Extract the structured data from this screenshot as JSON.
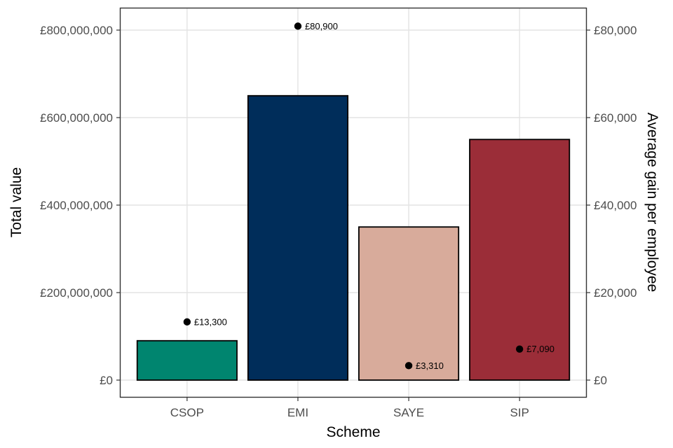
{
  "chart_data": {
    "type": "bar",
    "categories": [
      "CSOP",
      "EMI",
      "SAYE",
      "SIP"
    ],
    "xlabel": "Scheme",
    "ylabel": "Total value",
    "y2label": "Average gain per employee",
    "ylim": [
      0,
      850000000
    ],
    "y2lim": [
      0,
      85000
    ],
    "grid": true,
    "series": [
      {
        "axis": "left",
        "kind": "bar",
        "values": [
          90000000,
          650000000,
          350000000,
          550000000
        ],
        "colors": [
          "#00856f",
          "#002d5a",
          "#d8ab9b",
          "#9b2d38"
        ]
      },
      {
        "axis": "right",
        "kind": "point",
        "values": [
          13300,
          80900,
          3310,
          7090
        ],
        "labels": [
          "£13,300",
          "£80,900",
          "£3,310",
          "£7,090"
        ]
      }
    ],
    "y_ticks": [
      {
        "value": 0,
        "label": "£0"
      },
      {
        "value": 200000000,
        "label": "£200,000,000"
      },
      {
        "value": 400000000,
        "label": "£400,000,000"
      },
      {
        "value": 600000000,
        "label": "£600,000,000"
      },
      {
        "value": 800000000,
        "label": "£800,000,000"
      }
    ],
    "y2_ticks": [
      {
        "value": 0,
        "label": "£0"
      },
      {
        "value": 20000,
        "label": "£20,000"
      },
      {
        "value": 40000,
        "label": "£40,000"
      },
      {
        "value": 60000,
        "label": "£60,000"
      },
      {
        "value": 80000,
        "label": "£80,000"
      }
    ]
  }
}
